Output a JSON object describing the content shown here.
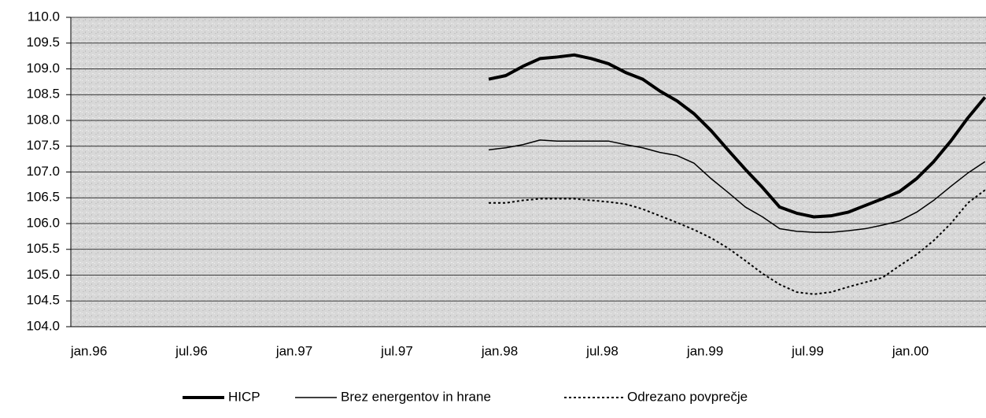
{
  "chart_data": {
    "type": "line",
    "categories": [
      "jan.96",
      null,
      null,
      null,
      null,
      null,
      "jul.96",
      null,
      null,
      null,
      null,
      null,
      "jan.97",
      null,
      null,
      null,
      null,
      null,
      "jul.97",
      null,
      null,
      null,
      null,
      null,
      "jan.98",
      null,
      null,
      null,
      null,
      null,
      "jul.98",
      null,
      null,
      null,
      null,
      null,
      "jan.99",
      null,
      null,
      null,
      null,
      null,
      "jul.99",
      null,
      null,
      null,
      null,
      null,
      "jan.00",
      null,
      null,
      null,
      null,
      null
    ],
    "series": [
      {
        "name": "HICP",
        "color": "#000000",
        "style": "thick",
        "values": [
          null,
          null,
          null,
          null,
          null,
          null,
          null,
          null,
          null,
          null,
          null,
          null,
          null,
          null,
          null,
          null,
          null,
          null,
          null,
          null,
          null,
          null,
          null,
          null,
          108.8,
          108.87,
          109.05,
          109.2,
          109.23,
          109.27,
          109.2,
          109.1,
          108.93,
          108.8,
          108.57,
          108.38,
          108.13,
          107.8,
          107.42,
          107.05,
          106.7,
          106.32,
          106.2,
          106.13,
          106.15,
          106.22,
          106.35,
          106.48,
          106.62,
          106.87,
          107.2,
          107.6,
          108.05,
          108.45
        ]
      },
      {
        "name": "Brez energentov in hrane",
        "color": "#000000",
        "style": "thin",
        "values": [
          null,
          null,
          null,
          null,
          null,
          null,
          null,
          null,
          null,
          null,
          null,
          null,
          null,
          null,
          null,
          null,
          null,
          null,
          null,
          null,
          null,
          null,
          null,
          null,
          107.43,
          107.47,
          107.53,
          107.62,
          107.6,
          107.6,
          107.6,
          107.6,
          107.53,
          107.47,
          107.38,
          107.32,
          107.17,
          106.87,
          106.6,
          106.32,
          106.13,
          105.9,
          105.85,
          105.83,
          105.83,
          105.86,
          105.9,
          105.97,
          106.05,
          106.22,
          106.45,
          106.72,
          106.98,
          107.2
        ]
      },
      {
        "name": "Odrezano povprečje",
        "color": "#000000",
        "style": "dotted",
        "values": [
          null,
          null,
          null,
          null,
          null,
          null,
          null,
          null,
          null,
          null,
          null,
          null,
          null,
          null,
          null,
          null,
          null,
          null,
          null,
          null,
          null,
          null,
          null,
          null,
          106.4,
          106.4,
          106.45,
          106.48,
          106.48,
          106.48,
          106.45,
          106.42,
          106.38,
          106.28,
          106.15,
          106.02,
          105.88,
          105.72,
          105.52,
          105.28,
          105.03,
          104.82,
          104.67,
          104.63,
          104.67,
          104.77,
          104.86,
          104.95,
          105.18,
          105.4,
          105.67,
          106.0,
          106.4,
          106.65
        ]
      }
    ],
    "ylim": [
      104,
      110
    ],
    "yticks": [
      {
        "value": 104,
        "label": "104.0"
      },
      {
        "value": 104.5,
        "label": "104.5"
      },
      {
        "value": 105,
        "label": "105.0"
      },
      {
        "value": 105.5,
        "label": "105.5"
      },
      {
        "value": 106,
        "label": "106.0"
      },
      {
        "value": 106.5,
        "label": "106.5"
      },
      {
        "value": 107,
        "label": "107.0"
      },
      {
        "value": 107.5,
        "label": "107.5"
      },
      {
        "value": 108,
        "label": "108.0"
      },
      {
        "value": 108.5,
        "label": "108.5"
      },
      {
        "value": 109,
        "label": "109.0"
      },
      {
        "value": 109.5,
        "label": "109.5"
      },
      {
        "value": 110,
        "label": "110.0"
      }
    ],
    "grid": true,
    "legend": "bottom"
  }
}
